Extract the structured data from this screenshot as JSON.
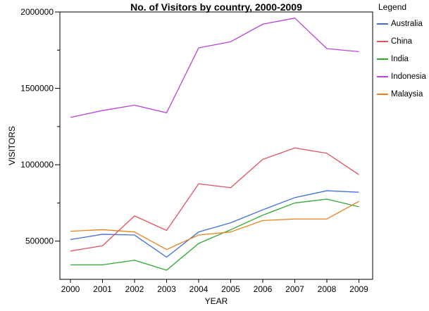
{
  "title": "No. of Visitors by country, 2000-2009",
  "legend": {
    "title": "Legend"
  },
  "chart_data": {
    "type": "line",
    "title": "No. of Visitors by country, 2000-2009",
    "xlabel": "YEAR",
    "ylabel": "VISITORS",
    "x": [
      2000,
      2001,
      2002,
      2003,
      2004,
      2005,
      2006,
      2007,
      2008,
      2009
    ],
    "ylim": [
      250000,
      2000000
    ],
    "yticks_major": [
      500000,
      1000000,
      1500000,
      2000000
    ],
    "yticks_minor": [
      750000,
      1250000,
      1750000
    ],
    "grid": false,
    "legend_position": "right",
    "series": [
      {
        "name": "Australia",
        "color": "#3E6FD8",
        "values": [
          510000,
          545000,
          540000,
          395000,
          560000,
          620000,
          705000,
          785000,
          830000,
          820000
        ]
      },
      {
        "name": "China",
        "color": "#E0545E",
        "values": [
          435000,
          470000,
          665000,
          570000,
          875000,
          850000,
          1035000,
          1110000,
          1075000,
          935000
        ]
      },
      {
        "name": "India",
        "color": "#2EA82E",
        "values": [
          345000,
          345000,
          375000,
          310000,
          485000,
          575000,
          670000,
          750000,
          775000,
          725000
        ]
      },
      {
        "name": "Indonesia",
        "color": "#B844DC",
        "values": [
          1310000,
          1355000,
          1390000,
          1340000,
          1765000,
          1805000,
          1920000,
          1960000,
          1760000,
          1740000
        ]
      },
      {
        "name": "Malaysia",
        "color": "#E8821E",
        "values": [
          565000,
          575000,
          560000,
          445000,
          540000,
          560000,
          635000,
          645000,
          645000,
          760000
        ]
      }
    ]
  }
}
